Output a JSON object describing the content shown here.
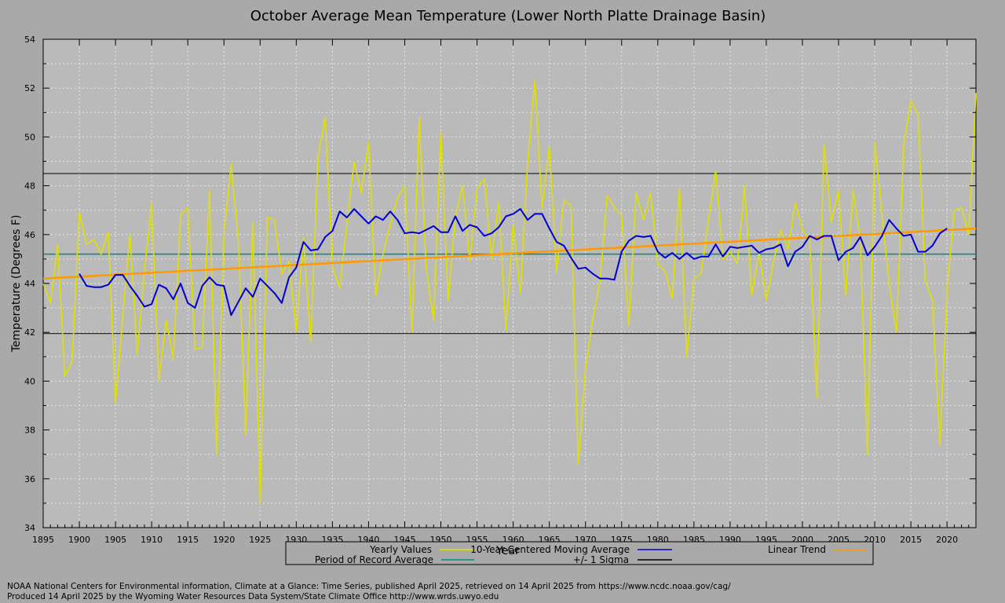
{
  "chart_data": {
    "type": "line",
    "title": "October Average Mean Temperature (Lower North Platte Drainage Basin)",
    "xlabel": "Year",
    "ylabel": "Temperature (Degrees F)",
    "xlim": [
      1895,
      2024
    ],
    "ylim": [
      34,
      54
    ],
    "x_ticks": [
      1895,
      1900,
      1905,
      1910,
      1915,
      1920,
      1925,
      1930,
      1935,
      1940,
      1945,
      1950,
      1955,
      1960,
      1965,
      1970,
      1975,
      1980,
      1985,
      1990,
      1995,
      2000,
      2005,
      2010,
      2015,
      2020
    ],
    "y_ticks": [
      34,
      36,
      38,
      40,
      42,
      44,
      46,
      48,
      50,
      52,
      54
    ],
    "grid": true,
    "x_start": 1895,
    "series": [
      {
        "name": "Yearly Values",
        "color": "#e0e000",
        "values": [
          44.0,
          43.2,
          45.6,
          40.2,
          40.8,
          46.9,
          45.6,
          45.8,
          45.2,
          46.1,
          39.1,
          42.6,
          46.0,
          41.1,
          44.5,
          47.3,
          40.0,
          42.5,
          40.9,
          46.8,
          47.1,
          41.3,
          41.4,
          47.8,
          37.0,
          46.0,
          48.9,
          45.7,
          37.8,
          46.5,
          35.0,
          46.7,
          46.6,
          44.4,
          44.9,
          42.0,
          45.9,
          41.6,
          49.2,
          50.8,
          44.7,
          43.8,
          46.4,
          49.0,
          47.7,
          49.8,
          43.5,
          45.2,
          46.4,
          47.5,
          48.0,
          42.0,
          50.8,
          44.5,
          42.5,
          50.2,
          43.3,
          46.7,
          48.0,
          44.9,
          47.9,
          48.3,
          45.0,
          47.3,
          42.1,
          46.4,
          43.6,
          49.0,
          52.3,
          47.1,
          49.6,
          44.5,
          47.4,
          47.2,
          36.6,
          40.5,
          42.5,
          44.1,
          47.6,
          47.1,
          46.8,
          42.3,
          47.7,
          46.6,
          47.7,
          44.8,
          44.5,
          43.4,
          47.9,
          41.0,
          44.2,
          44.4,
          46.6,
          48.6,
          45.0,
          45.3,
          44.8,
          48.0,
          43.5,
          45.3,
          43.3,
          44.9,
          46.2,
          45.4,
          47.3,
          46.2,
          45.8,
          39.3,
          49.7,
          46.5,
          47.8,
          43.5,
          47.8,
          45.8,
          37.0,
          49.8,
          46.8,
          44.0,
          42.0,
          49.6,
          51.5,
          50.9,
          44.1,
          43.3,
          37.4,
          43.7,
          47.0,
          47.1,
          46.0,
          51.8
        ]
      },
      {
        "name": "10-Year Centered Moving Average",
        "color": "#0000d0",
        "start": 1900,
        "values": [
          44.4,
          43.9,
          43.85,
          43.85,
          43.95,
          44.35,
          44.35,
          43.9,
          43.5,
          43.05,
          43.15,
          43.95,
          43.8,
          43.35,
          44.0,
          43.2,
          43.0,
          43.9,
          44.25,
          43.95,
          43.9,
          42.7,
          43.25,
          43.8,
          43.45,
          44.2,
          43.9,
          43.6,
          43.2,
          44.25,
          44.65,
          45.7,
          45.35,
          45.4,
          45.9,
          46.15,
          46.95,
          46.7,
          47.05,
          46.75,
          46.45,
          46.75,
          46.6,
          46.95,
          46.6,
          46.05,
          46.1,
          46.05,
          46.2,
          46.35,
          46.1,
          46.1,
          46.75,
          46.15,
          46.4,
          46.3,
          45.95,
          46.05,
          46.3,
          46.75,
          46.85,
          47.05,
          46.6,
          46.85,
          46.85,
          46.25,
          45.7,
          45.55,
          45.05,
          44.6,
          44.65,
          44.4,
          44.2,
          44.2,
          44.15,
          45.3,
          45.75,
          45.95,
          45.9,
          45.95,
          45.3,
          45.05,
          45.25,
          45.0,
          45.25,
          45.0,
          45.1,
          45.1,
          45.6,
          45.1,
          45.5,
          45.45,
          45.5,
          45.55,
          45.25,
          45.4,
          45.45,
          45.6,
          44.7,
          45.3,
          45.5,
          45.95,
          45.8,
          45.95,
          45.95,
          44.95,
          45.3,
          45.45,
          45.9,
          45.15,
          45.5,
          45.95,
          46.6,
          46.25,
          45.95,
          46.0,
          45.3,
          45.3,
          45.55,
          46.05,
          46.25
        ]
      },
      {
        "name": "Linear Trend",
        "color": "#ff9900",
        "start_value": 44.2,
        "end_value": 46.25
      },
      {
        "name": "Period of Record Average",
        "color": "#008b8b",
        "value": 45.2
      },
      {
        "name": "+/- 1 Sigma",
        "color": "#000000",
        "upper": 48.5,
        "lower": 41.95
      }
    ],
    "legend_position": "bottom-center",
    "plot_background": "#bababa",
    "frame_background": "#a9a9a9"
  },
  "footer": {
    "line1": "NOAA National Centers for Environmental information, Climate at a Glance: Time Series, published April 2025, retrieved on 14 April 2025 from https://www.ncdc.noaa.gov/cag/",
    "line2": "Produced 14 April 2025 by the Wyoming Water Resources Data System/State Climate Office http://www.wrds.uwyo.edu"
  }
}
